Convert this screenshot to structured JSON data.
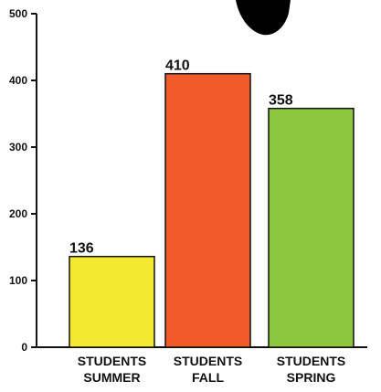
{
  "chart_data": {
    "type": "bar",
    "categories": [
      [
        "STUDENTS",
        "SUMMER"
      ],
      [
        "STUDENTS",
        "FALL"
      ],
      [
        "STUDENTS",
        "SPRING"
      ]
    ],
    "values": [
      136,
      410,
      358
    ],
    "data_labels": [
      "136",
      "410",
      "358"
    ],
    "bar_colors": [
      "#f2ea2e",
      "#f15a29",
      "#8dc63f"
    ],
    "yticks": [
      0,
      100,
      200,
      300,
      400,
      500
    ],
    "ylim": [
      0,
      500
    ],
    "grid": false,
    "legend": "none"
  }
}
